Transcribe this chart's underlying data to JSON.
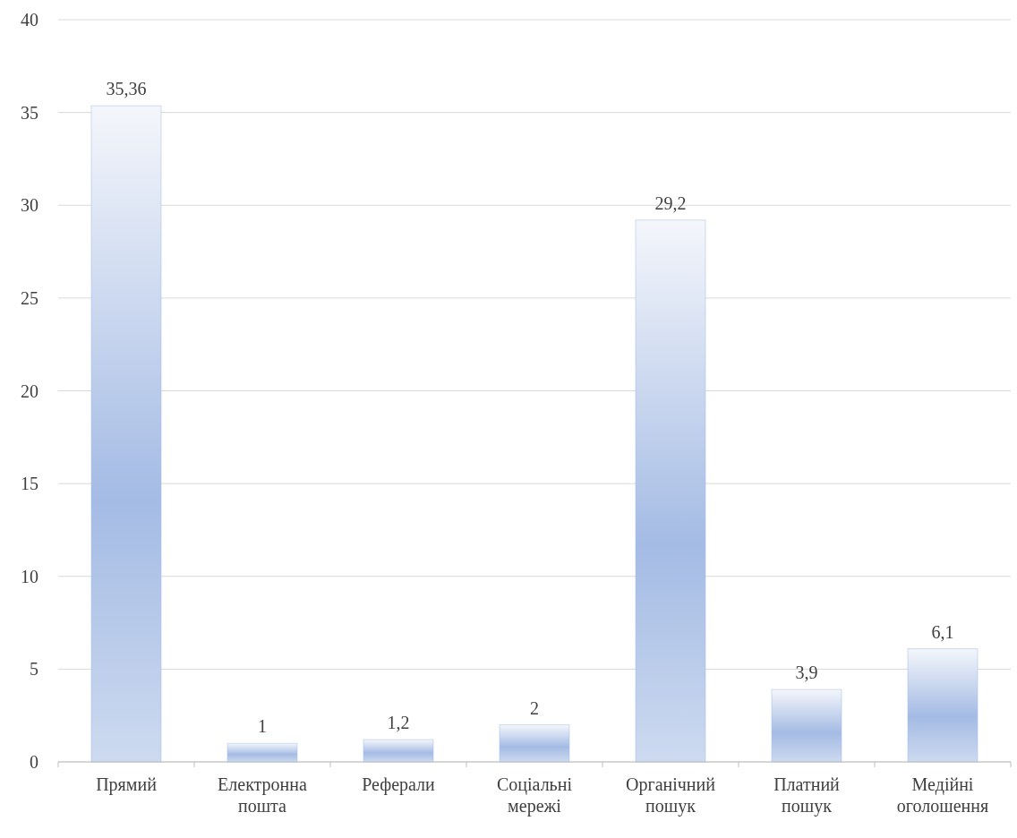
{
  "chart_data": {
    "type": "bar",
    "categories": [
      "Прямий",
      "Електронна пошта",
      "Реферали",
      "Соціальні мережі",
      "Органічний пошук",
      "Платний пошук",
      "Медійні оголошення"
    ],
    "values": [
      35.36,
      1,
      1.2,
      2,
      29.2,
      3.9,
      6.1
    ],
    "value_labels": [
      "35,36",
      "1",
      "1,2",
      "2",
      "29,2",
      "3,9",
      "6,1"
    ],
    "color": "#a4bbe4",
    "ylim": [
      0,
      40
    ],
    "yticks": [
      0,
      5,
      10,
      15,
      20,
      25,
      30,
      35,
      40
    ],
    "grid": "y"
  }
}
